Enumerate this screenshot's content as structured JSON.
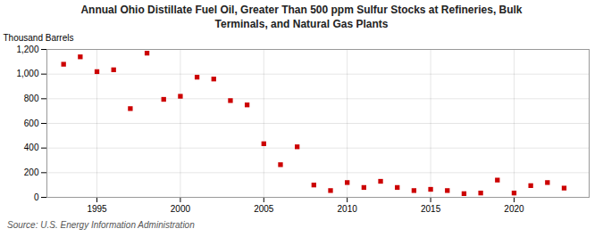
{
  "chart_data": {
    "type": "scatter",
    "title": "Annual Ohio Distillate Fuel Oil, Greater Than 500 ppm Sulfur Stocks at Refineries, Bulk\nTerminals, and Natural Gas Plants",
    "ylabel": "Thousand Barrels",
    "source": "Source: U.S. Energy Information Administration",
    "x": [
      1993,
      1994,
      1995,
      1996,
      1997,
      1998,
      1999,
      2000,
      2001,
      2002,
      2003,
      2004,
      2005,
      2006,
      2007,
      2008,
      2009,
      2010,
      2011,
      2012,
      2013,
      2014,
      2015,
      2016,
      2017,
      2018,
      2019,
      2020,
      2021,
      2022,
      2023
    ],
    "values": [
      1080,
      1140,
      1020,
      1035,
      720,
      1170,
      795,
      820,
      975,
      960,
      785,
      750,
      435,
      265,
      410,
      100,
      55,
      120,
      80,
      130,
      80,
      55,
      65,
      55,
      30,
      35,
      140,
      35,
      95,
      120,
      75
    ],
    "color": "#cc0000",
    "marker": "square",
    "xlim": [
      1992.0,
      2024.5
    ],
    "xticks": [
      1995,
      2000,
      2005,
      2010,
      2015,
      2020
    ],
    "ylim": [
      0,
      1200
    ],
    "yticks": [
      0,
      200,
      400,
      600,
      800,
      {
        "value": 1000,
        "label": "1,000"
      },
      {
        "value": 1200,
        "label": "1,200"
      }
    ],
    "grid": true
  }
}
